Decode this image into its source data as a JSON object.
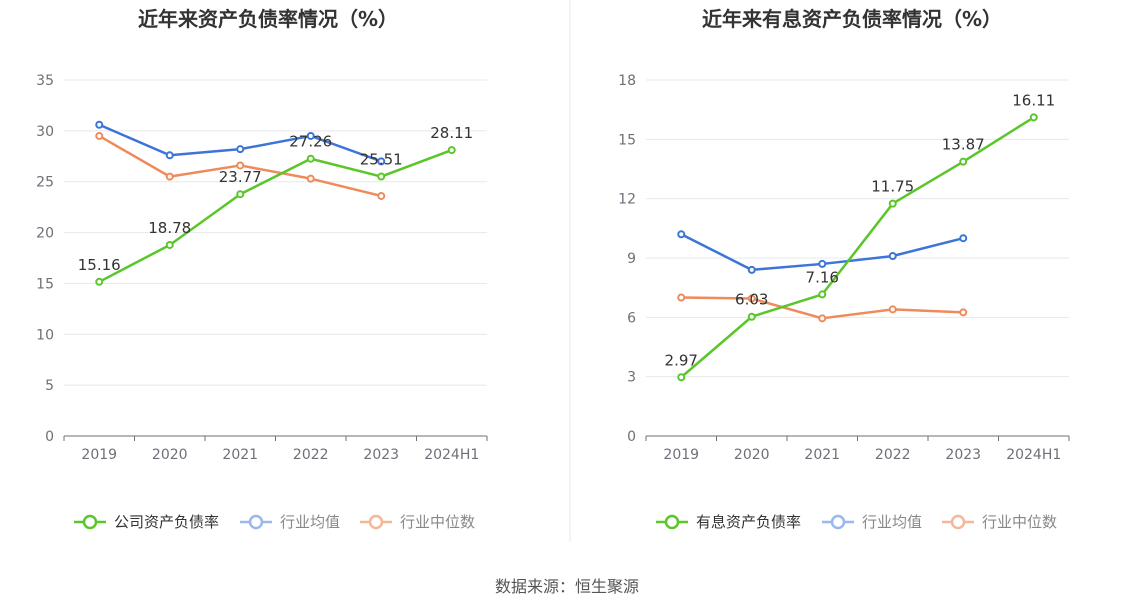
{
  "source_label": "数据来源：恒生聚源",
  "colors": {
    "green": "#5ac62a",
    "blue": "#3c74d8",
    "orange": "#ef8a5b",
    "grid": "#e6e8ee",
    "axis": "#6e7079",
    "divider": "#e8e8e8"
  },
  "chart_data": [
    {
      "type": "line",
      "title": "近年来资产负债率情况（%）",
      "categories": [
        "2019",
        "2020",
        "2021",
        "2022",
        "2023",
        "2024H1"
      ],
      "yticks": [
        "0",
        "5",
        "10",
        "15",
        "20",
        "25",
        "30",
        "35"
      ],
      "ylim": [
        0,
        35
      ],
      "grid": true,
      "legend_position": "bottom",
      "series": [
        {
          "name": "公司资产负债率",
          "color": "#5ac62a",
          "labeled": true,
          "values": [
            15.16,
            18.78,
            23.77,
            27.26,
            25.51,
            28.11
          ],
          "labels": [
            "15.16",
            "18.78",
            "23.77",
            "27.26",
            "25.51",
            "28.11"
          ]
        },
        {
          "name": "行业均值",
          "color": "#3c74d8",
          "labeled": false,
          "values": [
            30.6,
            27.6,
            28.2,
            29.5,
            27.0,
            null
          ]
        },
        {
          "name": "行业中位数",
          "color": "#ef8a5b",
          "labeled": false,
          "values": [
            29.5,
            25.5,
            26.6,
            25.3,
            23.6,
            null
          ]
        }
      ]
    },
    {
      "type": "line",
      "title": "近年来有息资产负债率情况（%）",
      "categories": [
        "2019",
        "2020",
        "2021",
        "2022",
        "2023",
        "2024H1"
      ],
      "yticks": [
        "0",
        "3",
        "6",
        "9",
        "12",
        "15",
        "18"
      ],
      "ylim": [
        0,
        18
      ],
      "grid": true,
      "legend_position": "bottom",
      "series": [
        {
          "name": "有息资产负债率",
          "color": "#5ac62a",
          "labeled": true,
          "values": [
            2.97,
            6.03,
            7.16,
            11.75,
            13.87,
            16.11
          ],
          "labels": [
            "2.97",
            "6.03",
            "7.16",
            "11.75",
            "13.87",
            "16.11"
          ]
        },
        {
          "name": "行业均值",
          "color": "#3c74d8",
          "labeled": false,
          "values": [
            10.2,
            8.4,
            8.7,
            9.1,
            10.0,
            null
          ]
        },
        {
          "name": "行业中位数",
          "color": "#ef8a5b",
          "labeled": false,
          "values": [
            7.0,
            6.95,
            5.95,
            6.4,
            6.25,
            null
          ]
        }
      ]
    }
  ]
}
